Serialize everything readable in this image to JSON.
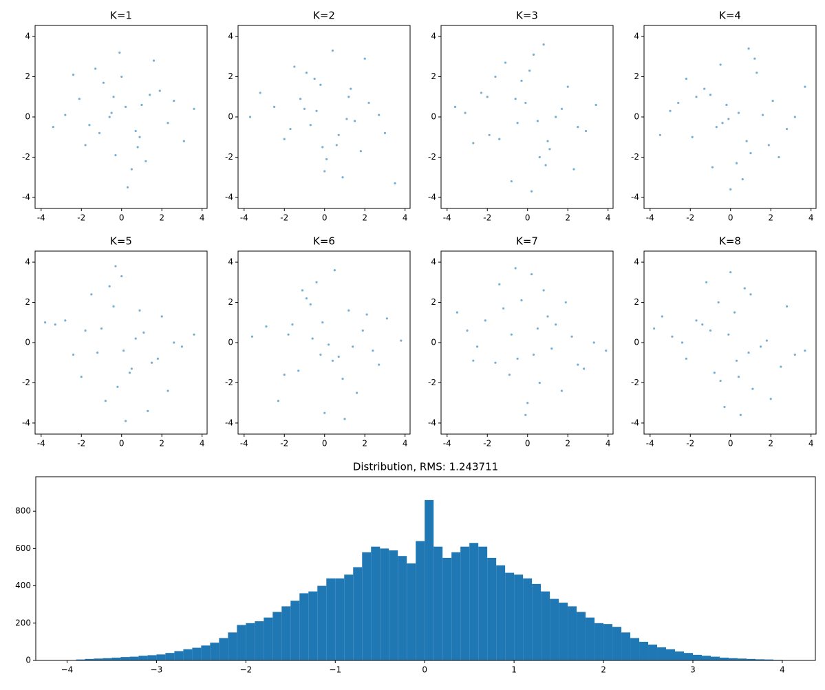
{
  "chart_data": [
    {
      "type": "scatter",
      "title": "K=1",
      "color": "#1f77b4",
      "xlim": [
        -4.3,
        4.25
      ],
      "ylim": [
        -4.55,
        4.55
      ],
      "xticks": [
        -4,
        -2,
        0,
        2,
        4
      ],
      "yticks": [
        -4,
        -2,
        0,
        2,
        4
      ],
      "x": [
        0.2,
        -1.1,
        1.4,
        -0.5,
        0.8,
        -2.1,
        2.3,
        0.0,
        -0.3,
        1.0,
        -1.6,
        0.5,
        -0.9,
        1.9,
        -2.8,
        3.1,
        -0.1,
        0.7,
        -1.3,
        1.2,
        -0.6,
        2.6,
        -3.4,
        0.3,
        -1.8,
        1.6,
        -0.4,
        0.9,
        -2.4,
        3.6
      ],
      "y": [
        0.5,
        -0.8,
        1.1,
        0.2,
        -1.5,
        0.9,
        -0.3,
        2.0,
        -1.9,
        0.6,
        -0.4,
        -2.6,
        1.7,
        1.3,
        0.1,
        -1.2,
        3.2,
        -0.7,
        2.4,
        -2.2,
        0.0,
        0.8,
        -0.5,
        -3.5,
        -1.4,
        2.8,
        1.0,
        -1.0,
        2.1,
        0.4
      ]
    },
    {
      "type": "scatter",
      "title": "K=2",
      "color": "#1f77b4",
      "xlim": [
        -4.3,
        4.25
      ],
      "ylim": [
        -4.55,
        4.55
      ],
      "xticks": [
        -4,
        -2,
        0,
        2,
        4
      ],
      "yticks": [
        -4,
        -2,
        0,
        2,
        4
      ],
      "x": [
        -0.4,
        1.2,
        -1.7,
        0.6,
        2.2,
        -0.9,
        0.1,
        -2.5,
        1.5,
        -0.2,
        0.9,
        -1.2,
        3.0,
        -3.2,
        0.4,
        1.8,
        -0.7,
        -1.5,
        2.7,
        0.0,
        -2.0,
        1.1,
        -0.5,
        3.5,
        -3.7,
        0.7,
        -1.0,
        2.0,
        -0.1,
        1.3
      ],
      "y": [
        0.3,
        1.0,
        -0.6,
        -1.4,
        0.7,
        2.2,
        -2.1,
        0.5,
        -0.2,
        1.6,
        -3.0,
        0.9,
        -0.8,
        1.2,
        3.3,
        -1.7,
        -0.4,
        2.5,
        0.1,
        -2.7,
        -1.1,
        -0.1,
        1.9,
        -3.3,
        0.0,
        -0.9,
        0.4,
        2.9,
        -1.5,
        1.4
      ]
    },
    {
      "type": "scatter",
      "title": "K=3",
      "color": "#1f77b4",
      "xlim": [
        -4.3,
        4.25
      ],
      "ylim": [
        -4.55,
        4.55
      ],
      "xticks": [
        -4,
        -2,
        0,
        2,
        4
      ],
      "yticks": [
        -4,
        -2,
        0,
        2,
        4
      ],
      "x": [
        0.5,
        -0.6,
        1.7,
        -1.4,
        0.1,
        2.5,
        -2.3,
        0.9,
        -0.1,
        1.1,
        -3.1,
        0.3,
        -1.9,
        2.0,
        -0.8,
        3.4,
        -2.7,
        0.6,
        -1.1,
        1.4,
        -0.3,
        2.9,
        -3.6,
        0.2,
        1.0,
        -1.6,
        0.8,
        -0.5,
        2.3,
        -2.0
      ],
      "y": [
        -0.2,
        0.9,
        0.4,
        -1.1,
        2.3,
        -0.5,
        1.2,
        -2.4,
        0.7,
        -1.6,
        0.2,
        3.1,
        -0.9,
        1.5,
        -3.2,
        0.6,
        -1.3,
        -2.0,
        2.7,
        0.0,
        1.8,
        -0.7,
        0.5,
        -3.7,
        -1.2,
        2.0,
        3.6,
        -0.3,
        -2.6,
        1.0
      ]
    },
    {
      "type": "scatter",
      "title": "K=4",
      "color": "#1f77b4",
      "xlim": [
        -4.3,
        4.25
      ],
      "ylim": [
        -4.55,
        4.55
      ],
      "xticks": [
        -4,
        -2,
        0,
        2,
        4
      ],
      "yticks": [
        -4,
        -2,
        0,
        2,
        4
      ],
      "x": [
        -0.2,
        0.8,
        -1.3,
        1.6,
        -0.7,
        0.3,
        2.1,
        -2.2,
        1.0,
        -0.5,
        -3.0,
        2.8,
        0.6,
        -1.7,
        1.3,
        -0.1,
        3.7,
        -3.5,
        0.9,
        -0.9,
        1.9,
        -2.6,
        0.0,
        0.4,
        -1.0,
        2.4,
        -0.4,
        1.2,
        -1.9,
        3.2
      ],
      "y": [
        0.6,
        -1.2,
        1.4,
        0.1,
        -0.5,
        -2.3,
        0.8,
        1.9,
        -1.8,
        2.6,
        0.3,
        -0.6,
        -3.1,
        1.0,
        2.2,
        -0.1,
        1.5,
        -0.9,
        3.4,
        -2.5,
        -1.4,
        0.7,
        -3.6,
        0.2,
        1.1,
        -2.0,
        -0.3,
        2.9,
        -1.0,
        0.0
      ]
    },
    {
      "type": "scatter",
      "title": "K=5",
      "color": "#1f77b4",
      "xlim": [
        -4.3,
        4.25
      ],
      "ylim": [
        -4.55,
        4.55
      ],
      "xticks": [
        -4,
        -2,
        0,
        2,
        4
      ],
      "yticks": [
        -4,
        -2,
        0,
        2,
        4
      ],
      "x": [
        0.1,
        -1.0,
        1.5,
        -0.4,
        0.7,
        -2.4,
        2.0,
        -0.2,
        1.1,
        -1.5,
        0.4,
        -0.8,
        2.6,
        -3.3,
        0.0,
        1.8,
        -2.0,
        0.9,
        -0.6,
        3.0,
        -2.8,
        1.3,
        -1.2,
        0.5,
        3.6,
        -0.3,
        2.3,
        -1.8,
        -3.8,
        0.2
      ],
      "y": [
        -0.4,
        0.7,
        -1.0,
        1.8,
        0.2,
        -0.6,
        1.3,
        -2.2,
        0.5,
        2.4,
        -1.5,
        -2.9,
        0.0,
        0.9,
        3.3,
        -0.8,
        -1.7,
        1.6,
        2.8,
        -0.2,
        1.1,
        -3.4,
        -0.5,
        -1.3,
        0.4,
        3.8,
        -2.4,
        0.6,
        1.0,
        -3.9
      ]
    },
    {
      "type": "scatter",
      "title": "K=6",
      "color": "#1f77b4",
      "xlim": [
        -4.3,
        4.25
      ],
      "ylim": [
        -4.55,
        4.55
      ],
      "xticks": [
        -4,
        -2,
        0,
        2,
        4
      ],
      "yticks": [
        -4,
        -2,
        0,
        2,
        4
      ],
      "x": [
        -0.6,
        0.4,
        1.2,
        -1.8,
        0.9,
        -0.1,
        2.4,
        -2.9,
        1.6,
        -0.9,
        0.2,
        -1.3,
        3.1,
        -0.4,
        1.9,
        -2.3,
        0.7,
        -3.6,
        2.7,
        0.0,
        -1.1,
        1.4,
        -0.7,
        3.8,
        -2.0,
        0.5,
        -1.6,
        1.0,
        -0.2,
        2.1
      ],
      "y": [
        0.2,
        -0.9,
        1.6,
        0.4,
        -1.8,
        1.0,
        -0.4,
        0.8,
        -2.5,
        2.2,
        -0.1,
        -1.4,
        1.2,
        3.0,
        0.6,
        -2.9,
        -0.7,
        0.3,
        -1.1,
        -3.5,
        2.6,
        -0.2,
        1.9,
        0.1,
        -1.6,
        3.6,
        0.9,
        -3.8,
        -0.6,
        1.4
      ]
    },
    {
      "type": "scatter",
      "title": "K=7",
      "color": "#1f77b4",
      "xlim": [
        -4.3,
        4.25
      ],
      "ylim": [
        -4.55,
        4.55
      ],
      "xticks": [
        -4,
        -2,
        0,
        2,
        4
      ],
      "yticks": [
        -4,
        -2,
        0,
        2,
        4
      ],
      "x": [
        0.3,
        -0.8,
        1.0,
        -1.6,
        0.6,
        2.2,
        -0.3,
        -2.5,
        1.4,
        0.0,
        -1.2,
        2.8,
        -3.0,
        0.8,
        -0.5,
        1.7,
        -2.1,
        3.3,
        -0.9,
        0.2,
        1.2,
        -3.5,
        2.5,
        -0.1,
        -1.4,
        0.5,
        3.9,
        -2.7,
        1.9,
        -0.6
      ],
      "y": [
        -0.6,
        0.4,
        1.3,
        -1.0,
        -2.0,
        0.3,
        2.1,
        -0.2,
        0.9,
        -3.0,
        1.7,
        -1.3,
        0.6,
        2.6,
        -0.8,
        -2.4,
        1.1,
        0.0,
        -1.6,
        3.4,
        -0.3,
        1.5,
        -1.1,
        -3.6,
        2.9,
        0.7,
        -0.4,
        -0.9,
        2.0,
        3.7
      ]
    },
    {
      "type": "scatter",
      "title": "K=8",
      "color": "#1f77b4",
      "xlim": [
        -4.3,
        4.25
      ],
      "ylim": [
        -4.55,
        4.55
      ],
      "xticks": [
        -4,
        -2,
        0,
        2,
        4
      ],
      "yticks": [
        -4,
        -2,
        0,
        2,
        4
      ],
      "x": [
        -0.1,
        0.9,
        -1.4,
        0.4,
        1.8,
        -0.6,
        -2.2,
        1.1,
        0.2,
        -1.0,
        2.5,
        -2.9,
        0.7,
        -0.3,
        1.5,
        -1.7,
        3.2,
        0.0,
        -3.4,
        2.0,
        -0.8,
        1.0,
        -2.4,
        0.5,
        3.7,
        -1.2,
        0.3,
        2.8,
        -3.8,
        -0.5
      ],
      "y": [
        0.4,
        -0.5,
        0.9,
        -1.7,
        0.1,
        2.0,
        -0.8,
        -2.3,
        1.5,
        0.6,
        -1.2,
        0.3,
        2.7,
        -3.2,
        -0.2,
        1.1,
        -0.6,
        3.5,
        1.3,
        -2.8,
        -1.5,
        2.4,
        0.0,
        -3.6,
        -0.4,
        3.0,
        -0.9,
        1.8,
        0.7,
        -1.9
      ]
    },
    {
      "type": "histogram",
      "title": "Distribution, RMS: 1.243711",
      "color": "#1f77b4",
      "xlim": [
        -4.35,
        4.37
      ],
      "ylim": [
        0,
        985
      ],
      "xticks": [
        {
          "value": -4,
          "label": "−4"
        },
        {
          "value": -3,
          "label": "−3"
        },
        {
          "value": -2,
          "label": "−2"
        },
        {
          "value": -1,
          "label": "−1"
        },
        0,
        1,
        2,
        3,
        4
      ],
      "yticks": [
        0,
        200,
        400,
        600,
        800
      ],
      "bins": [
        -4.0,
        -3.9,
        -3.8,
        -3.7,
        -3.6,
        -3.5,
        -3.4,
        -3.3,
        -3.2,
        -3.1,
        -3.0,
        -2.9,
        -2.8,
        -2.7,
        -2.6,
        -2.5,
        -2.4,
        -2.3,
        -2.2,
        -2.1,
        -2.0,
        -1.9,
        -1.8,
        -1.7,
        -1.6,
        -1.5,
        -1.4,
        -1.3,
        -1.2,
        -1.1,
        -1.0,
        -0.9,
        -0.8,
        -0.7,
        -0.6,
        -0.5,
        -0.4,
        -0.3,
        -0.2,
        -0.1,
        0.0,
        0.1,
        0.2,
        0.3,
        0.4,
        0.5,
        0.6,
        0.7,
        0.8,
        0.9,
        1.0,
        1.1,
        1.2,
        1.3,
        1.4,
        1.5,
        1.6,
        1.7,
        1.8,
        1.9,
        2.0,
        2.1,
        2.2,
        2.3,
        2.4,
        2.5,
        2.6,
        2.7,
        2.8,
        2.9,
        3.0,
        3.1,
        3.2,
        3.3,
        3.4,
        3.5,
        3.6,
        3.7,
        3.8,
        3.9,
        4.0
      ],
      "counts": [
        0,
        5,
        8,
        10,
        12,
        15,
        18,
        20,
        25,
        28,
        32,
        40,
        50,
        60,
        68,
        80,
        95,
        120,
        150,
        190,
        200,
        210,
        230,
        260,
        290,
        320,
        360,
        370,
        400,
        440,
        440,
        460,
        500,
        580,
        610,
        600,
        590,
        560,
        520,
        640,
        860,
        610,
        550,
        580,
        610,
        630,
        610,
        550,
        510,
        470,
        460,
        440,
        410,
        370,
        330,
        310,
        290,
        260,
        230,
        200,
        195,
        180,
        150,
        120,
        100,
        85,
        70,
        60,
        48,
        40,
        30,
        25,
        20,
        15,
        12,
        10,
        8,
        6,
        5,
        3
      ]
    }
  ]
}
